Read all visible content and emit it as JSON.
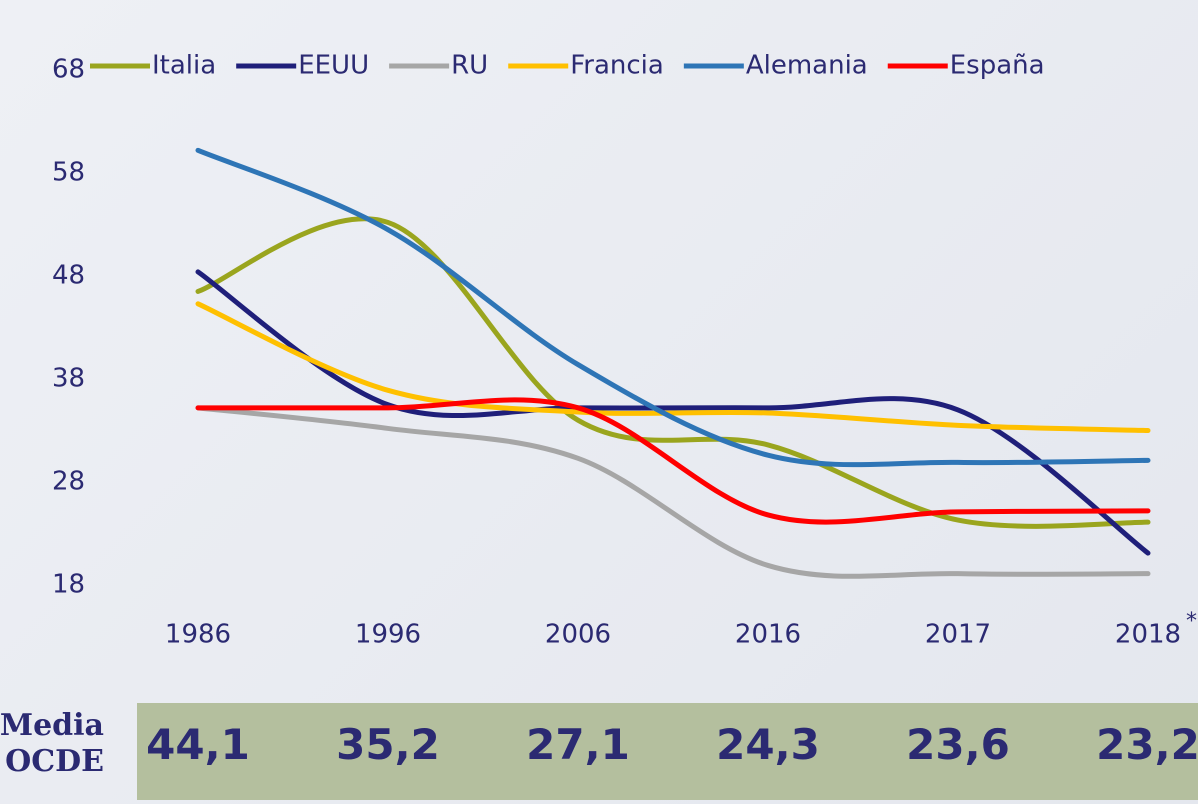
{
  "chart_data": {
    "type": "line",
    "categories": [
      "1986",
      "1996",
      "2006",
      "2016",
      "2017",
      "2018"
    ],
    "footnote_mark": "*",
    "ylim": [
      18,
      68
    ],
    "yticks": [
      18,
      28,
      38,
      48,
      58,
      68
    ],
    "series": [
      {
        "name": "Italia",
        "color": "#9aa51e",
        "values": [
          46.5,
          53.2,
          34,
          31.6,
          24.3,
          24.1
        ]
      },
      {
        "name": "EEUU",
        "color": "#1f1f7a",
        "values": [
          48.4,
          35.5,
          35.2,
          35.2,
          35,
          21.1
        ]
      },
      {
        "name": "RU",
        "color": "#a6a6a6",
        "values": [
          35.2,
          33.2,
          30.3,
          19.9,
          19.1,
          19.1
        ]
      },
      {
        "name": "Francia",
        "color": "#ffc000",
        "values": [
          45.3,
          36.9,
          34.8,
          34.7,
          33.5,
          33
        ]
      },
      {
        "name": "Alemania",
        "color": "#2e75b6",
        "values": [
          60.2,
          52.5,
          39.4,
          30.6,
          29.9,
          30.1
        ]
      },
      {
        "name": "España",
        "color": "#ff0000",
        "values": [
          35.2,
          35.2,
          35.2,
          24.8,
          25.1,
          25.2
        ]
      }
    ]
  },
  "table": {
    "label": "Media OCDE",
    "values": [
      "44,1",
      "35,2",
      "27,1",
      "24,3",
      "23,6",
      "23,2"
    ]
  }
}
